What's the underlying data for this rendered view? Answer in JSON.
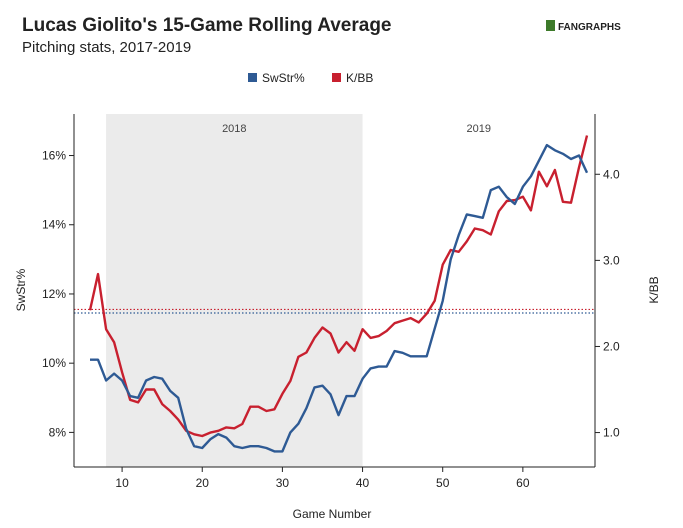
{
  "chart_data": {
    "type": "line",
    "title": "Lucas Giolito's 15-Game Rolling Average",
    "subtitle": "Pitching stats, 2017-2019",
    "brand": "FANGRAPHS",
    "xlabel": "Game Number",
    "ylabel_left": "SwStr%",
    "ylabel_right": "K/BB",
    "xlim": [
      4,
      69
    ],
    "ylim_left": [
      7.0,
      17.2
    ],
    "ylim_right": [
      0.6,
      4.7
    ],
    "xticks": [
      10,
      20,
      30,
      40,
      50,
      60
    ],
    "yticks_left": [
      {
        "value": 8,
        "label": "8%"
      },
      {
        "value": 10,
        "label": "10%"
      },
      {
        "value": 12,
        "label": "12%"
      },
      {
        "value": 14,
        "label": "14%"
      },
      {
        "value": 16,
        "label": "16%"
      }
    ],
    "yticks_right": [
      {
        "value": 1.0,
        "label": "1.0"
      },
      {
        "value": 2.0,
        "label": "2.0"
      },
      {
        "value": 3.0,
        "label": "3.0"
      },
      {
        "value": 4.0,
        "label": "4.0"
      }
    ],
    "regions": [
      {
        "label": "2018",
        "x_start": 8,
        "x_end": 40,
        "shaded": true
      },
      {
        "label": "2019",
        "x_start": 40,
        "x_end": 69,
        "shaded": false
      }
    ],
    "legend_position": "top-center",
    "series": [
      {
        "name": "SwStr%",
        "axis": "left",
        "color": "#2e5a94",
        "x": [
          6,
          7,
          8,
          9,
          10,
          11,
          12,
          13,
          14,
          15,
          16,
          17,
          18,
          19,
          20,
          21,
          22,
          23,
          24,
          25,
          26,
          27,
          28,
          29,
          30,
          31,
          32,
          33,
          34,
          35,
          36,
          37,
          38,
          39,
          40,
          41,
          42,
          43,
          44,
          45,
          46,
          47,
          48,
          49,
          50,
          51,
          52,
          53,
          54,
          55,
          56,
          57,
          58,
          59,
          60,
          61,
          62,
          63,
          64,
          65,
          66,
          67,
          68
        ],
        "values": [
          10.1,
          10.1,
          9.5,
          9.7,
          9.5,
          9.05,
          9.0,
          9.5,
          9.6,
          9.55,
          9.2,
          9.0,
          8.1,
          7.6,
          7.55,
          7.8,
          7.95,
          7.85,
          7.6,
          7.55,
          7.6,
          7.6,
          7.55,
          7.45,
          7.45,
          8.0,
          8.25,
          8.7,
          9.3,
          9.35,
          9.1,
          8.5,
          9.05,
          9.05,
          9.55,
          9.85,
          9.9,
          9.9,
          10.35,
          10.3,
          10.2,
          10.2,
          10.2,
          11.0,
          11.8,
          13.0,
          13.7,
          14.3,
          14.25,
          14.2,
          15.0,
          15.1,
          14.8,
          14.6,
          15.1,
          15.4,
          15.85,
          16.3,
          16.15,
          16.05,
          15.9,
          16.0,
          15.5
        ]
      },
      {
        "name": "K/BB",
        "axis": "right",
        "color": "#c8202f",
        "x": [
          6,
          7,
          8,
          9,
          10,
          11,
          12,
          13,
          14,
          15,
          16,
          17,
          18,
          19,
          20,
          21,
          22,
          23,
          24,
          25,
          26,
          27,
          28,
          29,
          30,
          31,
          32,
          33,
          34,
          35,
          36,
          37,
          38,
          39,
          40,
          41,
          42,
          43,
          44,
          45,
          46,
          47,
          48,
          49,
          50,
          51,
          52,
          53,
          54,
          55,
          56,
          57,
          58,
          59,
          60,
          61,
          62,
          63,
          64,
          65,
          66,
          67,
          68
        ],
        "values": [
          2.42,
          2.84,
          2.2,
          2.05,
          1.7,
          1.38,
          1.35,
          1.5,
          1.5,
          1.33,
          1.25,
          1.15,
          1.02,
          0.98,
          0.96,
          1.0,
          1.02,
          1.06,
          1.05,
          1.1,
          1.3,
          1.3,
          1.25,
          1.27,
          1.45,
          1.6,
          1.88,
          1.93,
          2.1,
          2.22,
          2.15,
          1.93,
          2.05,
          1.95,
          2.2,
          2.1,
          2.12,
          2.18,
          2.27,
          2.3,
          2.33,
          2.28,
          2.38,
          2.53,
          2.95,
          3.12,
          3.1,
          3.22,
          3.37,
          3.35,
          3.3,
          3.57,
          3.69,
          3.7,
          3.74,
          3.58,
          4.03,
          3.86,
          4.05,
          3.68,
          3.67,
          4.08,
          4.45
        ]
      }
    ],
    "reference_lines": [
      {
        "axis": "left",
        "series": "SwStr%",
        "value": 11.45,
        "style": "dotted",
        "color": "#2e5a94"
      },
      {
        "axis": "right",
        "series": "K/BB",
        "value": 2.43,
        "style": "dotted",
        "color": "#c8202f"
      }
    ]
  }
}
